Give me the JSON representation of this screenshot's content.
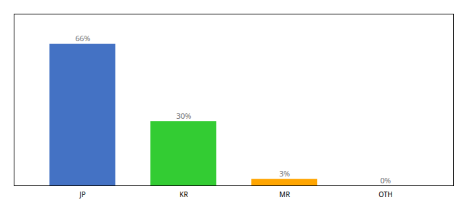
{
  "chart_data": {
    "type": "bar",
    "categories": [
      "JP",
      "KR",
      "MR",
      "OTH"
    ],
    "values": [
      66,
      30,
      3,
      0
    ],
    "value_labels": [
      "66%",
      "30%",
      "3%",
      "0%"
    ],
    "colors": [
      "#4472C4",
      "#33CC33",
      "#FFA500",
      "#FFA500"
    ],
    "ylim": [
      0,
      80
    ],
    "data_labels": true,
    "tick_labels": "x",
    "grid": false
  }
}
